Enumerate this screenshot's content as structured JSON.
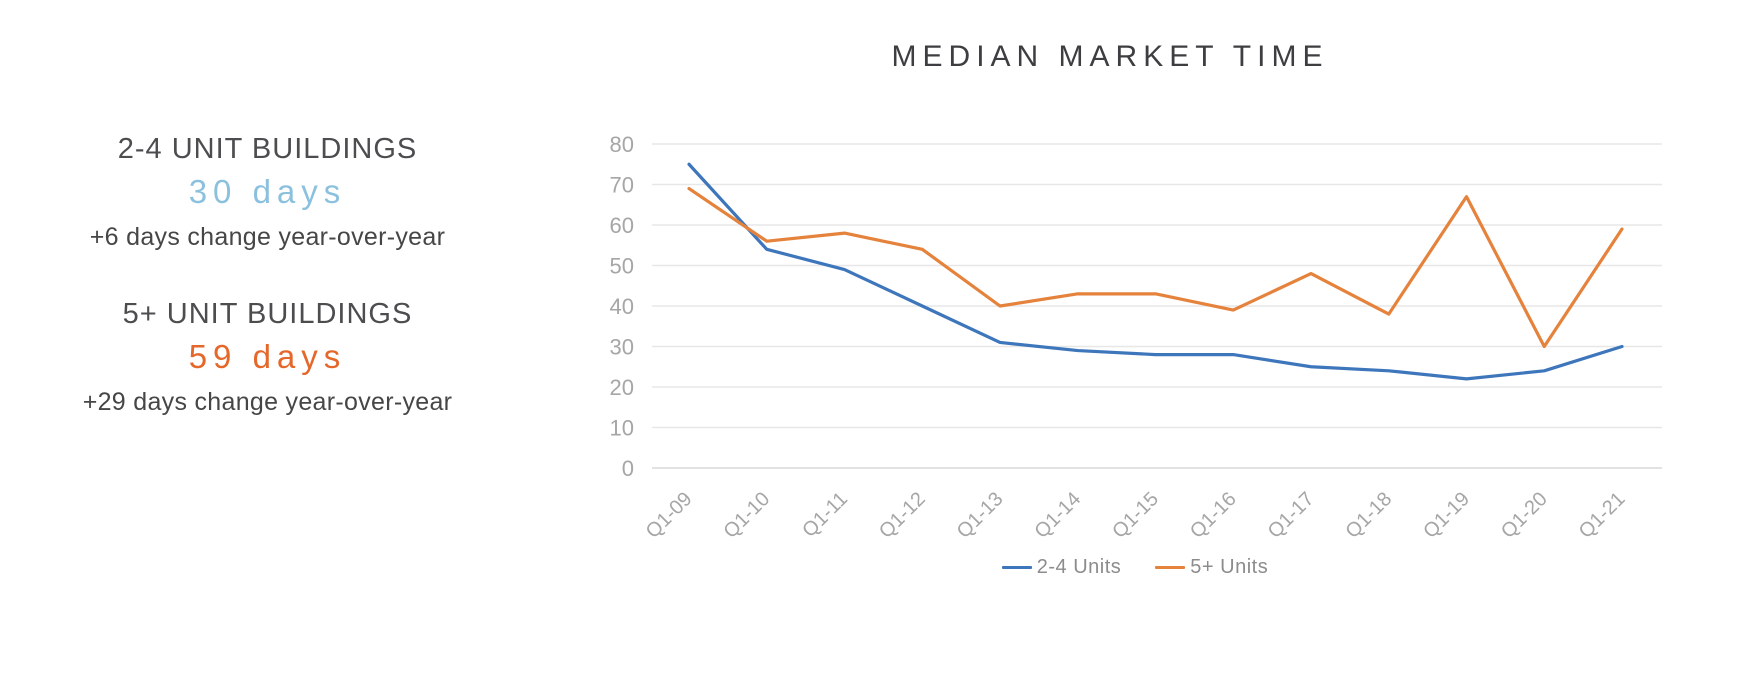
{
  "title": "MEDIAN MARKET TIME",
  "stats": [
    {
      "heading": "2-4 UNIT BUILDINGS",
      "value": "30 days",
      "value_color": "#8bc1de",
      "change": "+6 days change year-over-year"
    },
    {
      "heading": "5+ UNIT BUILDINGS",
      "value": "59 days",
      "value_color": "#e5672a",
      "change": "+29 days change year-over-year"
    }
  ],
  "chart_data": {
    "type": "line",
    "title": "MEDIAN MARKET TIME",
    "categories": [
      "Q1-09",
      "Q1-10",
      "Q1-11",
      "Q1-12",
      "Q1-13",
      "Q1-14",
      "Q1-15",
      "Q1-16",
      "Q1-17",
      "Q1-18",
      "Q1-19",
      "Q1-20",
      "Q1-21"
    ],
    "series": [
      {
        "name": "2-4 Units",
        "color": "#3e76bc",
        "values": [
          75,
          54,
          49,
          40,
          31,
          29,
          28,
          28,
          25,
          24,
          22,
          24,
          30
        ]
      },
      {
        "name": "5+ Units",
        "color": "#e5823c",
        "values": [
          69,
          56,
          58,
          54,
          40,
          43,
          43,
          39,
          48,
          38,
          67,
          30,
          59
        ]
      }
    ],
    "xlabel": "",
    "ylabel": "",
    "ylim": [
      0,
      80
    ],
    "ytick_step": 10,
    "yticks": [
      0,
      10,
      20,
      30,
      40,
      50,
      60,
      70,
      80
    ],
    "grid": true,
    "legend_position": "bottom",
    "axis_label_color": "#a6a6a6",
    "gridline_color": "#e7e7e7",
    "baseline_color": "#d9d9d9"
  }
}
